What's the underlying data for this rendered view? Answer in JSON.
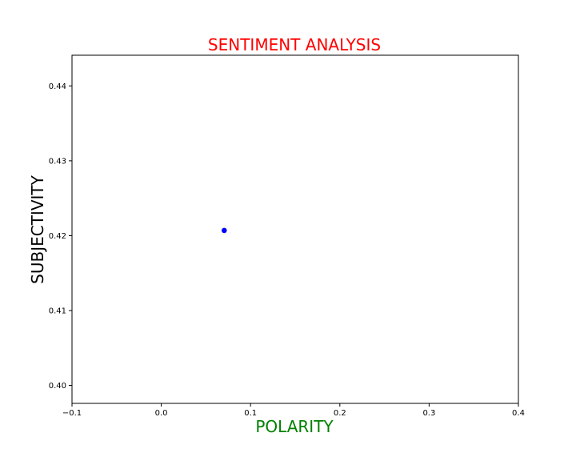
{
  "chart_data": {
    "type": "scatter",
    "title": "SENTIMENT ANALYSIS",
    "xlabel": "POLARITY",
    "ylabel": "SUBJECTIVITY",
    "xlim": [
      -0.1,
      0.4
    ],
    "ylim": [
      0.3976,
      0.4441
    ],
    "xticks": [
      -0.1,
      0.0,
      0.1,
      0.2,
      0.3,
      0.4
    ],
    "xtick_labels": [
      "−0.1",
      "0.0",
      "0.1",
      "0.2",
      "0.3",
      "0.4"
    ],
    "yticks": [
      0.4,
      0.41,
      0.42,
      0.43,
      0.44
    ],
    "ytick_labels": [
      "0.40",
      "0.41",
      "0.42",
      "0.43",
      "0.44"
    ],
    "grid": false,
    "points": [
      {
        "x": 0.0705,
        "y": 0.4207
      }
    ],
    "colors": {
      "title": "#ff0000",
      "xlabel": "#008000",
      "ylabel": "#000000",
      "marker": "#0000ff"
    }
  }
}
